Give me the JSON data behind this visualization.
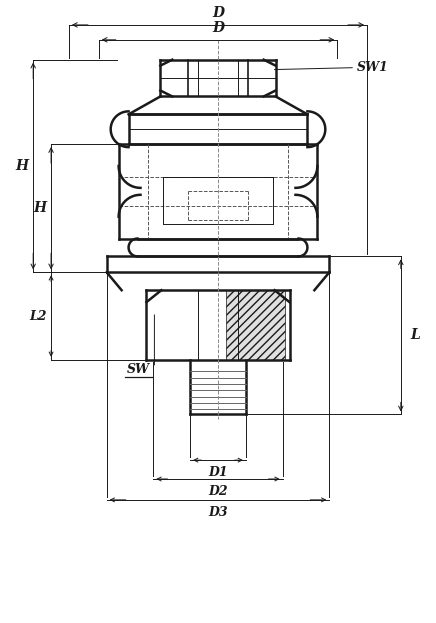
{
  "bg_color": "#ffffff",
  "line_color": "#1a1a1a",
  "fig_width": 4.36,
  "fig_height": 6.23,
  "labels": {
    "D_top": "D",
    "D_mid": "D",
    "SW1": "SW1",
    "H_outer": "H",
    "H_inner": "H",
    "L2": "L2",
    "SW": "SW",
    "L": "L",
    "D1": "D1",
    "D2": "D2",
    "D3": "D3"
  }
}
